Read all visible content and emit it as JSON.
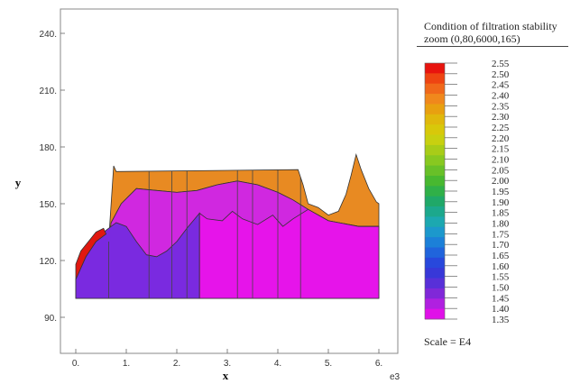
{
  "chart_data": {
    "type": "contour",
    "title": "",
    "xlabel": "x",
    "ylabel": "y",
    "x_multiplier_label": "e3",
    "xlim": [
      -0.3,
      6.3
    ],
    "ylim": [
      80,
      252
    ],
    "x_ticks": [
      0,
      1,
      2,
      3,
      4,
      5,
      6
    ],
    "x_tick_labels": [
      "0.",
      "1.",
      "2.",
      "3.",
      "4.",
      "5.",
      "6."
    ],
    "y_ticks": [
      90,
      120,
      150,
      180,
      210,
      240
    ],
    "y_tick_labels": [
      "90.",
      "120.",
      "150.",
      "180.",
      "210.",
      "240."
    ],
    "grid": false,
    "legend": {
      "title_line1": "Condition of  filtration stability",
      "title_line2": "zoom (0,80,6000,165)",
      "placement": "right",
      "scale_note": "Scale = E4",
      "levels": [
        "2.55",
        "2.50",
        "2.45",
        "2.40",
        "2.35",
        "2.30",
        "2.25",
        "2.20",
        "2.15",
        "2.10",
        "2.05",
        "2.00",
        "1.95",
        "1.90",
        "1.85",
        "1.80",
        "1.75",
        "1.70",
        "1.65",
        "1.60",
        "1.55",
        "1.50",
        "1.45",
        "1.40",
        "1.35"
      ],
      "colors": [
        "#e8140e",
        "#ee4412",
        "#f0681a",
        "#f0881c",
        "#e8a010",
        "#e0b80c",
        "#d8c80a",
        "#c8d010",
        "#a8cc18",
        "#88c820",
        "#68c028",
        "#48b830",
        "#30b048",
        "#20a868",
        "#1ca88c",
        "#1ca8b0",
        "#1c98cc",
        "#1c80d8",
        "#2064dc",
        "#2848dc",
        "#3838d8",
        "#5830d8",
        "#8028d8",
        "#b020e0",
        "#e010e8"
      ]
    },
    "regions": [
      {
        "name": "upper-zone",
        "color": "#e88a22",
        "boundary": [
          [
            0.65,
            130
          ],
          [
            0.75,
            170
          ],
          [
            0.8,
            167
          ],
          [
            4.4,
            168
          ],
          [
            4.5,
            160
          ],
          [
            4.6,
            150
          ],
          [
            4.8,
            148
          ],
          [
            5.0,
            144
          ],
          [
            5.2,
            146
          ],
          [
            5.35,
            155
          ],
          [
            5.45,
            165
          ],
          [
            5.55,
            176
          ],
          [
            5.65,
            168
          ],
          [
            5.8,
            158
          ],
          [
            5.95,
            151
          ],
          [
            6.0,
            150
          ],
          [
            6.0,
            138
          ],
          [
            5.6,
            138
          ],
          [
            5.0,
            141
          ],
          [
            4.6,
            147
          ],
          [
            4.3,
            152
          ],
          [
            4.0,
            156
          ],
          [
            3.6,
            160
          ],
          [
            3.2,
            162
          ],
          [
            2.8,
            160
          ],
          [
            2.4,
            157
          ],
          [
            2.0,
            156
          ],
          [
            1.6,
            157
          ],
          [
            1.2,
            158
          ],
          [
            0.9,
            150
          ],
          [
            0.7,
            140
          ],
          [
            0.65,
            130
          ]
        ]
      },
      {
        "name": "middle-zone",
        "color": "#d028e0",
        "boundary": [
          [
            0.65,
            130
          ],
          [
            0.7,
            140
          ],
          [
            0.9,
            150
          ],
          [
            1.2,
            158
          ],
          [
            1.6,
            157
          ],
          [
            2.0,
            156
          ],
          [
            2.4,
            157
          ],
          [
            2.8,
            160
          ],
          [
            3.2,
            162
          ],
          [
            3.6,
            160
          ],
          [
            4.0,
            156
          ],
          [
            4.3,
            152
          ],
          [
            4.6,
            147
          ],
          [
            5.0,
            141
          ],
          [
            5.6,
            138
          ],
          [
            6.0,
            138
          ],
          [
            6.0,
            100
          ],
          [
            0.0,
            100
          ],
          [
            0.0,
            110
          ],
          [
            0.3,
            125
          ],
          [
            0.5,
            132
          ],
          [
            0.65,
            130
          ]
        ]
      },
      {
        "name": "lower-left-zone",
        "color": "#7a2ae0",
        "boundary": [
          [
            0.0,
            100
          ],
          [
            0.0,
            110
          ],
          [
            0.2,
            122
          ],
          [
            0.4,
            130
          ],
          [
            0.6,
            136
          ],
          [
            0.8,
            140
          ],
          [
            1.0,
            138
          ],
          [
            1.2,
            130
          ],
          [
            1.4,
            123
          ],
          [
            1.6,
            122
          ],
          [
            1.8,
            125
          ],
          [
            2.0,
            130
          ],
          [
            2.2,
            137
          ],
          [
            2.45,
            145
          ],
          [
            2.45,
            100
          ],
          [
            0.0,
            100
          ]
        ]
      },
      {
        "name": "left-edge-zone",
        "color": "#e01810",
        "boundary": [
          [
            0.0,
            110
          ],
          [
            0.0,
            118
          ],
          [
            0.1,
            125
          ],
          [
            0.25,
            130
          ],
          [
            0.4,
            135
          ],
          [
            0.55,
            137
          ],
          [
            0.6,
            134
          ],
          [
            0.4,
            130
          ],
          [
            0.2,
            122
          ],
          [
            0.0,
            110
          ]
        ]
      },
      {
        "name": "right-pink-zone",
        "color": "#e614ea",
        "boundary": [
          [
            2.45,
            100
          ],
          [
            2.45,
            145
          ],
          [
            2.6,
            142
          ],
          [
            2.9,
            141
          ],
          [
            3.1,
            146
          ],
          [
            3.3,
            142
          ],
          [
            3.6,
            139
          ],
          [
            3.9,
            144
          ],
          [
            4.1,
            138
          ],
          [
            4.3,
            142
          ],
          [
            4.6,
            147
          ],
          [
            5.0,
            141
          ],
          [
            5.6,
            138
          ],
          [
            6.0,
            138
          ],
          [
            6.0,
            100
          ],
          [
            2.45,
            100
          ]
        ]
      }
    ],
    "vertical_lines": [
      0.65,
      1.45,
      1.9,
      2.2,
      3.2,
      3.5,
      4.0,
      4.45
    ]
  }
}
